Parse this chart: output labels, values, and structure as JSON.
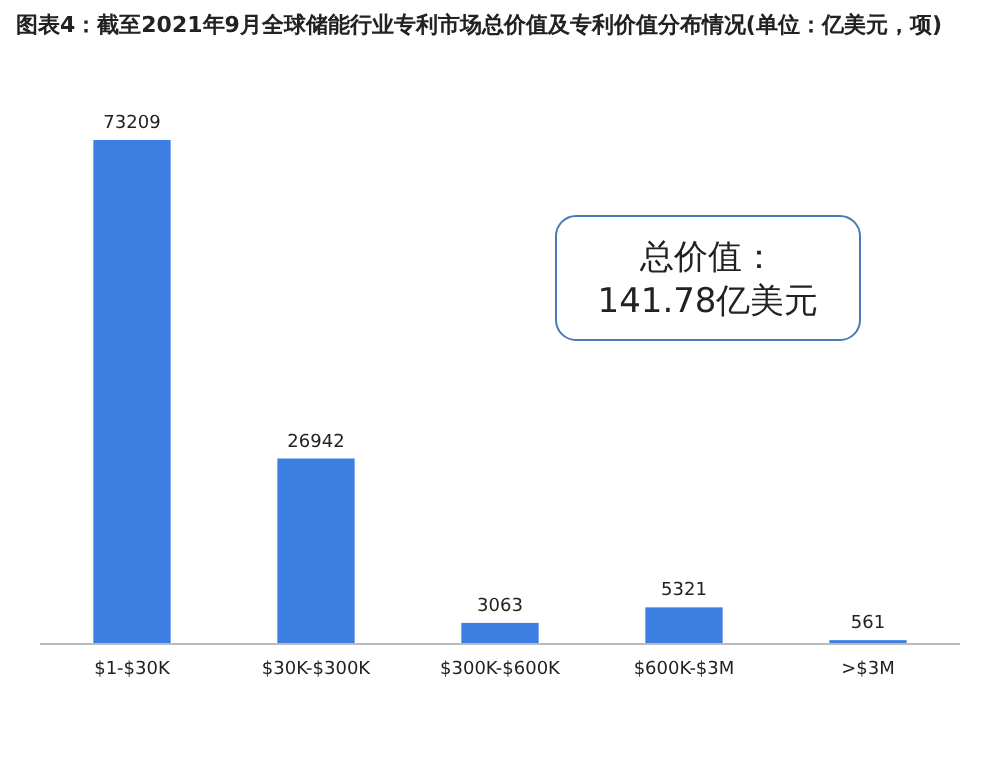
{
  "chart_data": {
    "type": "bar",
    "title": "图表4：截至2021年9月全球储能行业专利市场总价值及专利价值分布情况(单位：亿美元，项)",
    "categories": [
      "$1-$30K",
      "$30K-$300K",
      "$300K-$600K",
      "$600K-$3M",
      ">$3M"
    ],
    "values": [
      73209,
      26942,
      3063,
      5321,
      561
    ],
    "color": "#3d7fe0",
    "data_labels": true,
    "annotations": [
      "总价值：\n141.78亿美元"
    ]
  }
}
